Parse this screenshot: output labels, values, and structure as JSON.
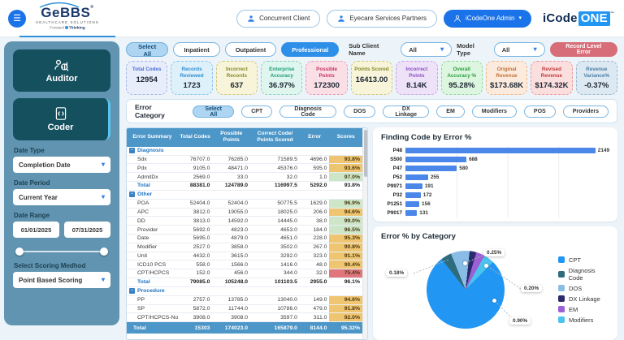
{
  "header": {
    "brand": {
      "name": "GeBBS",
      "reg": "®",
      "sub": "HEALTHCARE SOLUTIONS",
      "tagline_forward": "Forward",
      "tagline_thinking": "Thinking"
    },
    "client_buttons": [
      "Concurrent Client",
      "Eyecare Services Partners"
    ],
    "admin_label": "iCodeOne Admin",
    "product": {
      "part1": "iCode",
      "part2": "ONE",
      "tm": "™"
    }
  },
  "icons": {
    "collapse": "−",
    "caret": "▾",
    "hamburger": "☰"
  },
  "sidebar": {
    "nav": [
      {
        "label": "Auditor"
      },
      {
        "label": "Coder",
        "selected": true
      }
    ],
    "filters": [
      {
        "label": "Date Type",
        "value": "Completion Date"
      },
      {
        "label": "Date Period",
        "value": "Current Year"
      },
      {
        "label": "Date Range",
        "from": "01/01/2025",
        "to": "07/31/2025"
      },
      {
        "label": "Select Scoring Medhod",
        "value": "Point Based Scoring"
      }
    ]
  },
  "filters_top": {
    "pills": [
      {
        "label": "Select All",
        "state": "selected"
      },
      {
        "label": "Inpatient",
        "state": "default"
      },
      {
        "label": "Outpatient",
        "state": "default"
      },
      {
        "label": "Professional",
        "state": "active"
      }
    ],
    "sub_client_label": "Sub Client Name",
    "sub_client_value": "All",
    "model_type_label": "Model Type",
    "model_type_value": "All",
    "record_level_error_label": "Record Level Error"
  },
  "kpis": [
    {
      "label": "Total Codes",
      "value": "12954",
      "theme": "indigo"
    },
    {
      "label": "Records Reviewed",
      "value": "1723",
      "theme": "sky"
    },
    {
      "label": "Incorrect Records",
      "value": "637",
      "theme": "yellow"
    },
    {
      "label": "Enterprise Accuracy",
      "value": "36.97%",
      "theme": "mint"
    },
    {
      "label": "Possible Points",
      "value": "172300",
      "theme": "pink"
    },
    {
      "label": "Points Scored",
      "value": "16413.00",
      "theme": "yellow"
    },
    {
      "label": "Incorrect Points",
      "value": "8.14K",
      "theme": "purple"
    },
    {
      "label": "Overall Accuracy %",
      "value": "95.28%",
      "theme": "green"
    },
    {
      "label": "Original Revenue",
      "value": "$173.68K",
      "theme": "peach"
    },
    {
      "label": "Revised Revenue",
      "value": "$174.32K",
      "theme": "rose"
    },
    {
      "label": "Revenue Variance%",
      "value": "-0.37%",
      "theme": "steel"
    }
  ],
  "error_category": {
    "label": "Error Category",
    "pills": [
      "Select All",
      "CPT",
      "Diagnosis Code",
      "DOS",
      "DX Linkage",
      "EM",
      "Modifiers",
      "POS",
      "Providers"
    ]
  },
  "table": {
    "columns": [
      "Error Summary",
      "Total Codes",
      "Possible Points",
      "Correct Code/ Points Scored",
      "Error",
      "Scores"
    ],
    "groups": [
      {
        "name": "Diagnosis",
        "rows": [
          {
            "cells": [
              "Sdx",
              "76707.0",
              "76285.0",
              "71589.5",
              "4696.0"
            ],
            "score": "93.8%",
            "score_color": "orange"
          },
          {
            "cells": [
              "Pdx",
              "9105.0",
              "48471.0",
              "45376.0",
              "595.0"
            ],
            "score": "93.6%",
            "score_color": "orange"
          },
          {
            "cells": [
              "AdmitDx",
              "2569.0",
              "33.0",
              "32.0",
              "1.0"
            ],
            "score": "97.0%",
            "score_color": "green"
          }
        ],
        "total": [
          "Total",
          "88381.0",
          "124789.0",
          "116997.5",
          "5292.0",
          "93.8%"
        ]
      },
      {
        "name": "Other",
        "rows": [
          {
            "cells": [
              "POA",
              "52404.0",
              "52404.0",
              "50775.5",
              "1629.0"
            ],
            "score": "96.9%",
            "score_color": "green"
          },
          {
            "cells": [
              "APC",
              "3812.0",
              "19055.0",
              "18025.0",
              "206.0"
            ],
            "score": "94.6%",
            "score_color": "orange"
          },
          {
            "cells": [
              "DD",
              "3813.0",
              "14592.0",
              "14445.0",
              "38.0"
            ],
            "score": "99.0%",
            "score_color": "green"
          },
          {
            "cells": [
              "Provider",
              "5692.0",
              "4823.0",
              "4653.0",
              "184.0"
            ],
            "score": "96.5%",
            "score_color": "green"
          },
          {
            "cells": [
              "Date",
              "5695.0",
              "4879.0",
              "4651.0",
              "228.0"
            ],
            "score": "95.3%",
            "score_color": "orange"
          },
          {
            "cells": [
              "Modifier",
              "2527.0",
              "3858.0",
              "3502.0",
              "267.0"
            ],
            "score": "90.8%",
            "score_color": "orange"
          },
          {
            "cells": [
              "Unit",
              "4432.0",
              "3615.0",
              "3292.0",
              "323.0"
            ],
            "score": "91.1%",
            "score_color": "orange"
          },
          {
            "cells": [
              "ICD10 PCS",
              "558.0",
              "1566.0",
              "1416.0",
              "48.0"
            ],
            "score": "90.4%",
            "score_color": "orange"
          },
          {
            "cells": [
              "CPT/HCPCS",
              "152.0",
              "456.0",
              "344.0",
              "32.0"
            ],
            "score": "75.4%",
            "score_color": "red"
          }
        ],
        "total": [
          "Total",
          "79085.0",
          "105248.0",
          "101103.5",
          "2955.0",
          "96.1%"
        ]
      },
      {
        "name": "Procedure",
        "rows": [
          {
            "cells": [
              "PP",
              "2757.0",
              "13785.0",
              "13040.0",
              "149.0"
            ],
            "score": "94.6%",
            "score_color": "orange"
          },
          {
            "cells": [
              "SP",
              "5872.0",
              "11744.0",
              "10786.0",
              "479.0"
            ],
            "score": "91.8%",
            "score_color": "orange"
          },
          {
            "cells": [
              "CPT/HCPCS-Non",
              "3908.0",
              "3908.0",
              "3597.0",
              "311.0"
            ],
            "score": "92.0%",
            "score_color": "orange"
          }
        ]
      }
    ],
    "footer": [
      "Total",
      "15303",
      "174023.0",
      "165879.0",
      "8144.0",
      "95.32%"
    ]
  },
  "chart_data": [
    {
      "type": "bar",
      "orientation": "horizontal",
      "title": "Finding Code by Error %",
      "categories": [
        "P48",
        "S500",
        "P47",
        "P52",
        "P9971",
        "P32",
        "P1251",
        "P9017"
      ],
      "values": [
        2149,
        688,
        580,
        255,
        191,
        172,
        156,
        131
      ],
      "xlim": [
        0,
        2300
      ],
      "grid": true,
      "bar_color": "#4b87e8"
    },
    {
      "type": "pie",
      "title": "Error % by Category",
      "legend_position": "right",
      "slices": [
        {
          "label": "CPT",
          "color": "#2196f3",
          "deg": 277
        },
        {
          "label": "Diagnosis Code",
          "color": "#2e6b7d",
          "deg": 16
        },
        {
          "label": "DOS",
          "color": "#8abde6",
          "deg": 28
        },
        {
          "label": "DX Linkage",
          "color": "#2b2a6b",
          "deg": 10
        },
        {
          "label": "EM",
          "color": "#9c5fd4",
          "deg": 13
        },
        {
          "label": "Modifiers",
          "color": "#4cc2ee",
          "deg": 16
        }
      ],
      "callouts": [
        {
          "label": "0.18%",
          "target": "Diagnosis Code"
        },
        {
          "label": "0.25%",
          "target": "DOS"
        },
        {
          "label": "0.20%",
          "target": "Modifiers"
        },
        {
          "label": "0.90%",
          "target": "CPT"
        }
      ]
    }
  ]
}
